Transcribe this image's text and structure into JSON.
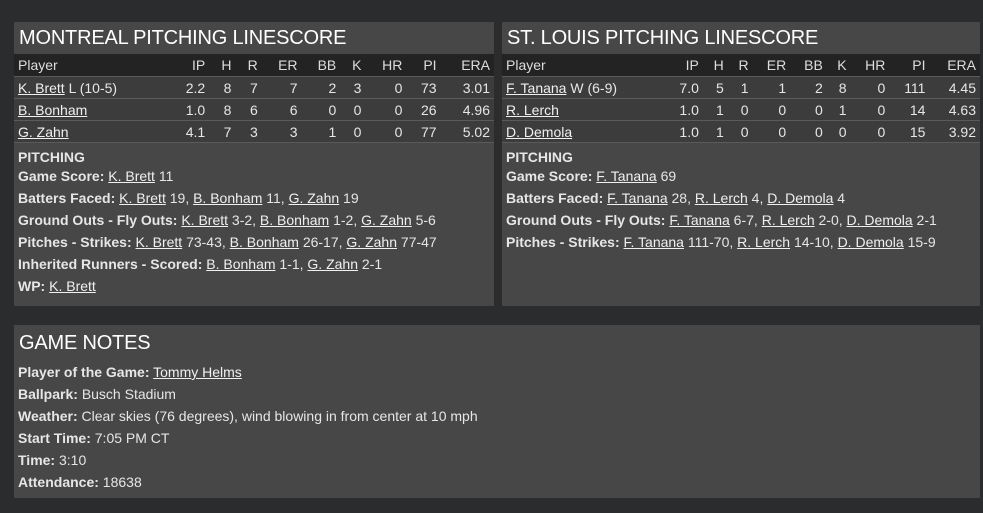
{
  "columns": [
    "Player",
    "IP",
    "H",
    "R",
    "ER",
    "BB",
    "K",
    "HR",
    "PI",
    "ERA"
  ],
  "left": {
    "title": "MONTREAL PITCHING LINESCORE",
    "rows": [
      {
        "name": "K. Brett",
        "note": " L (10-5)",
        "stats": [
          "2.2",
          "8",
          "7",
          "7",
          "2",
          "3",
          "0",
          "73",
          "3.01"
        ]
      },
      {
        "name": "B. Bonham",
        "note": "",
        "stats": [
          "1.0",
          "8",
          "6",
          "6",
          "0",
          "0",
          "0",
          "26",
          "4.96"
        ]
      },
      {
        "name": "G. Zahn",
        "note": "",
        "stats": [
          "4.1",
          "7",
          "3",
          "3",
          "1",
          "0",
          "0",
          "77",
          "5.02"
        ]
      }
    ],
    "section": "PITCHING",
    "lines": [
      {
        "label": "Game Score:",
        "items": [
          [
            "K. Brett",
            " 11"
          ]
        ]
      },
      {
        "label": "Batters Faced:",
        "items": [
          [
            "K. Brett",
            " 19"
          ],
          [
            "B. Bonham",
            " 11"
          ],
          [
            "G. Zahn",
            " 19"
          ]
        ]
      },
      {
        "label": "Ground Outs - Fly Outs:",
        "items": [
          [
            "K. Brett",
            " 3-2"
          ],
          [
            "B. Bonham",
            " 1-2"
          ],
          [
            "G. Zahn",
            " 5-6"
          ]
        ]
      },
      {
        "label": "Pitches - Strikes:",
        "items": [
          [
            "K. Brett",
            " 73-43"
          ],
          [
            "B. Bonham",
            " 26-17"
          ],
          [
            "G. Zahn",
            " 77-47"
          ]
        ]
      },
      {
        "label": "Inherited Runners - Scored:",
        "items": [
          [
            "B. Bonham",
            " 1-1"
          ],
          [
            "G. Zahn",
            " 2-1"
          ]
        ]
      },
      {
        "label": "WP:",
        "items": [
          [
            "K. Brett",
            ""
          ]
        ]
      }
    ]
  },
  "right": {
    "title": "ST. LOUIS PITCHING LINESCORE",
    "rows": [
      {
        "name": "F. Tanana",
        "note": " W (6-9)",
        "stats": [
          "7.0",
          "5",
          "1",
          "1",
          "2",
          "8",
          "0",
          "111",
          "4.45"
        ]
      },
      {
        "name": "R. Lerch",
        "note": "",
        "stats": [
          "1.0",
          "1",
          "0",
          "0",
          "0",
          "1",
          "0",
          "14",
          "4.63"
        ]
      },
      {
        "name": "D. Demola",
        "note": "",
        "stats": [
          "1.0",
          "1",
          "0",
          "0",
          "0",
          "0",
          "0",
          "15",
          "3.92"
        ]
      }
    ],
    "section": "PITCHING",
    "lines": [
      {
        "label": "Game Score:",
        "items": [
          [
            "F. Tanana",
            " 69"
          ]
        ]
      },
      {
        "label": "Batters Faced:",
        "items": [
          [
            "F. Tanana",
            " 28"
          ],
          [
            "R. Lerch",
            " 4"
          ],
          [
            "D. Demola",
            " 4"
          ]
        ]
      },
      {
        "label": "Ground Outs - Fly Outs:",
        "items": [
          [
            "F. Tanana",
            " 6-7"
          ],
          [
            "R. Lerch",
            " 2-0"
          ],
          [
            "D. Demola",
            " 2-1"
          ]
        ]
      },
      {
        "label": "Pitches - Strikes:",
        "items": [
          [
            "F. Tanana",
            " 111-70"
          ],
          [
            "R. Lerch",
            " 14-10"
          ],
          [
            "D. Demola",
            " 15-9"
          ]
        ]
      }
    ]
  },
  "notes": {
    "title": "GAME NOTES",
    "lines": [
      {
        "label": "Player of the Game:",
        "items": [
          [
            "Tommy Helms",
            ""
          ]
        ]
      },
      {
        "label": "Ballpark:",
        "items": [
          [
            "",
            "Busch Stadium"
          ]
        ]
      },
      {
        "label": "Weather:",
        "items": [
          [
            "",
            "Clear skies (76 degrees), wind blowing in from center at 10 mph"
          ]
        ]
      },
      {
        "label": "Start Time:",
        "items": [
          [
            "",
            "7:05 PM CT"
          ]
        ]
      },
      {
        "label": "Time:",
        "items": [
          [
            "",
            "3:10"
          ]
        ]
      },
      {
        "label": "Attendance:",
        "items": [
          [
            "",
            "18638"
          ]
        ]
      }
    ]
  }
}
